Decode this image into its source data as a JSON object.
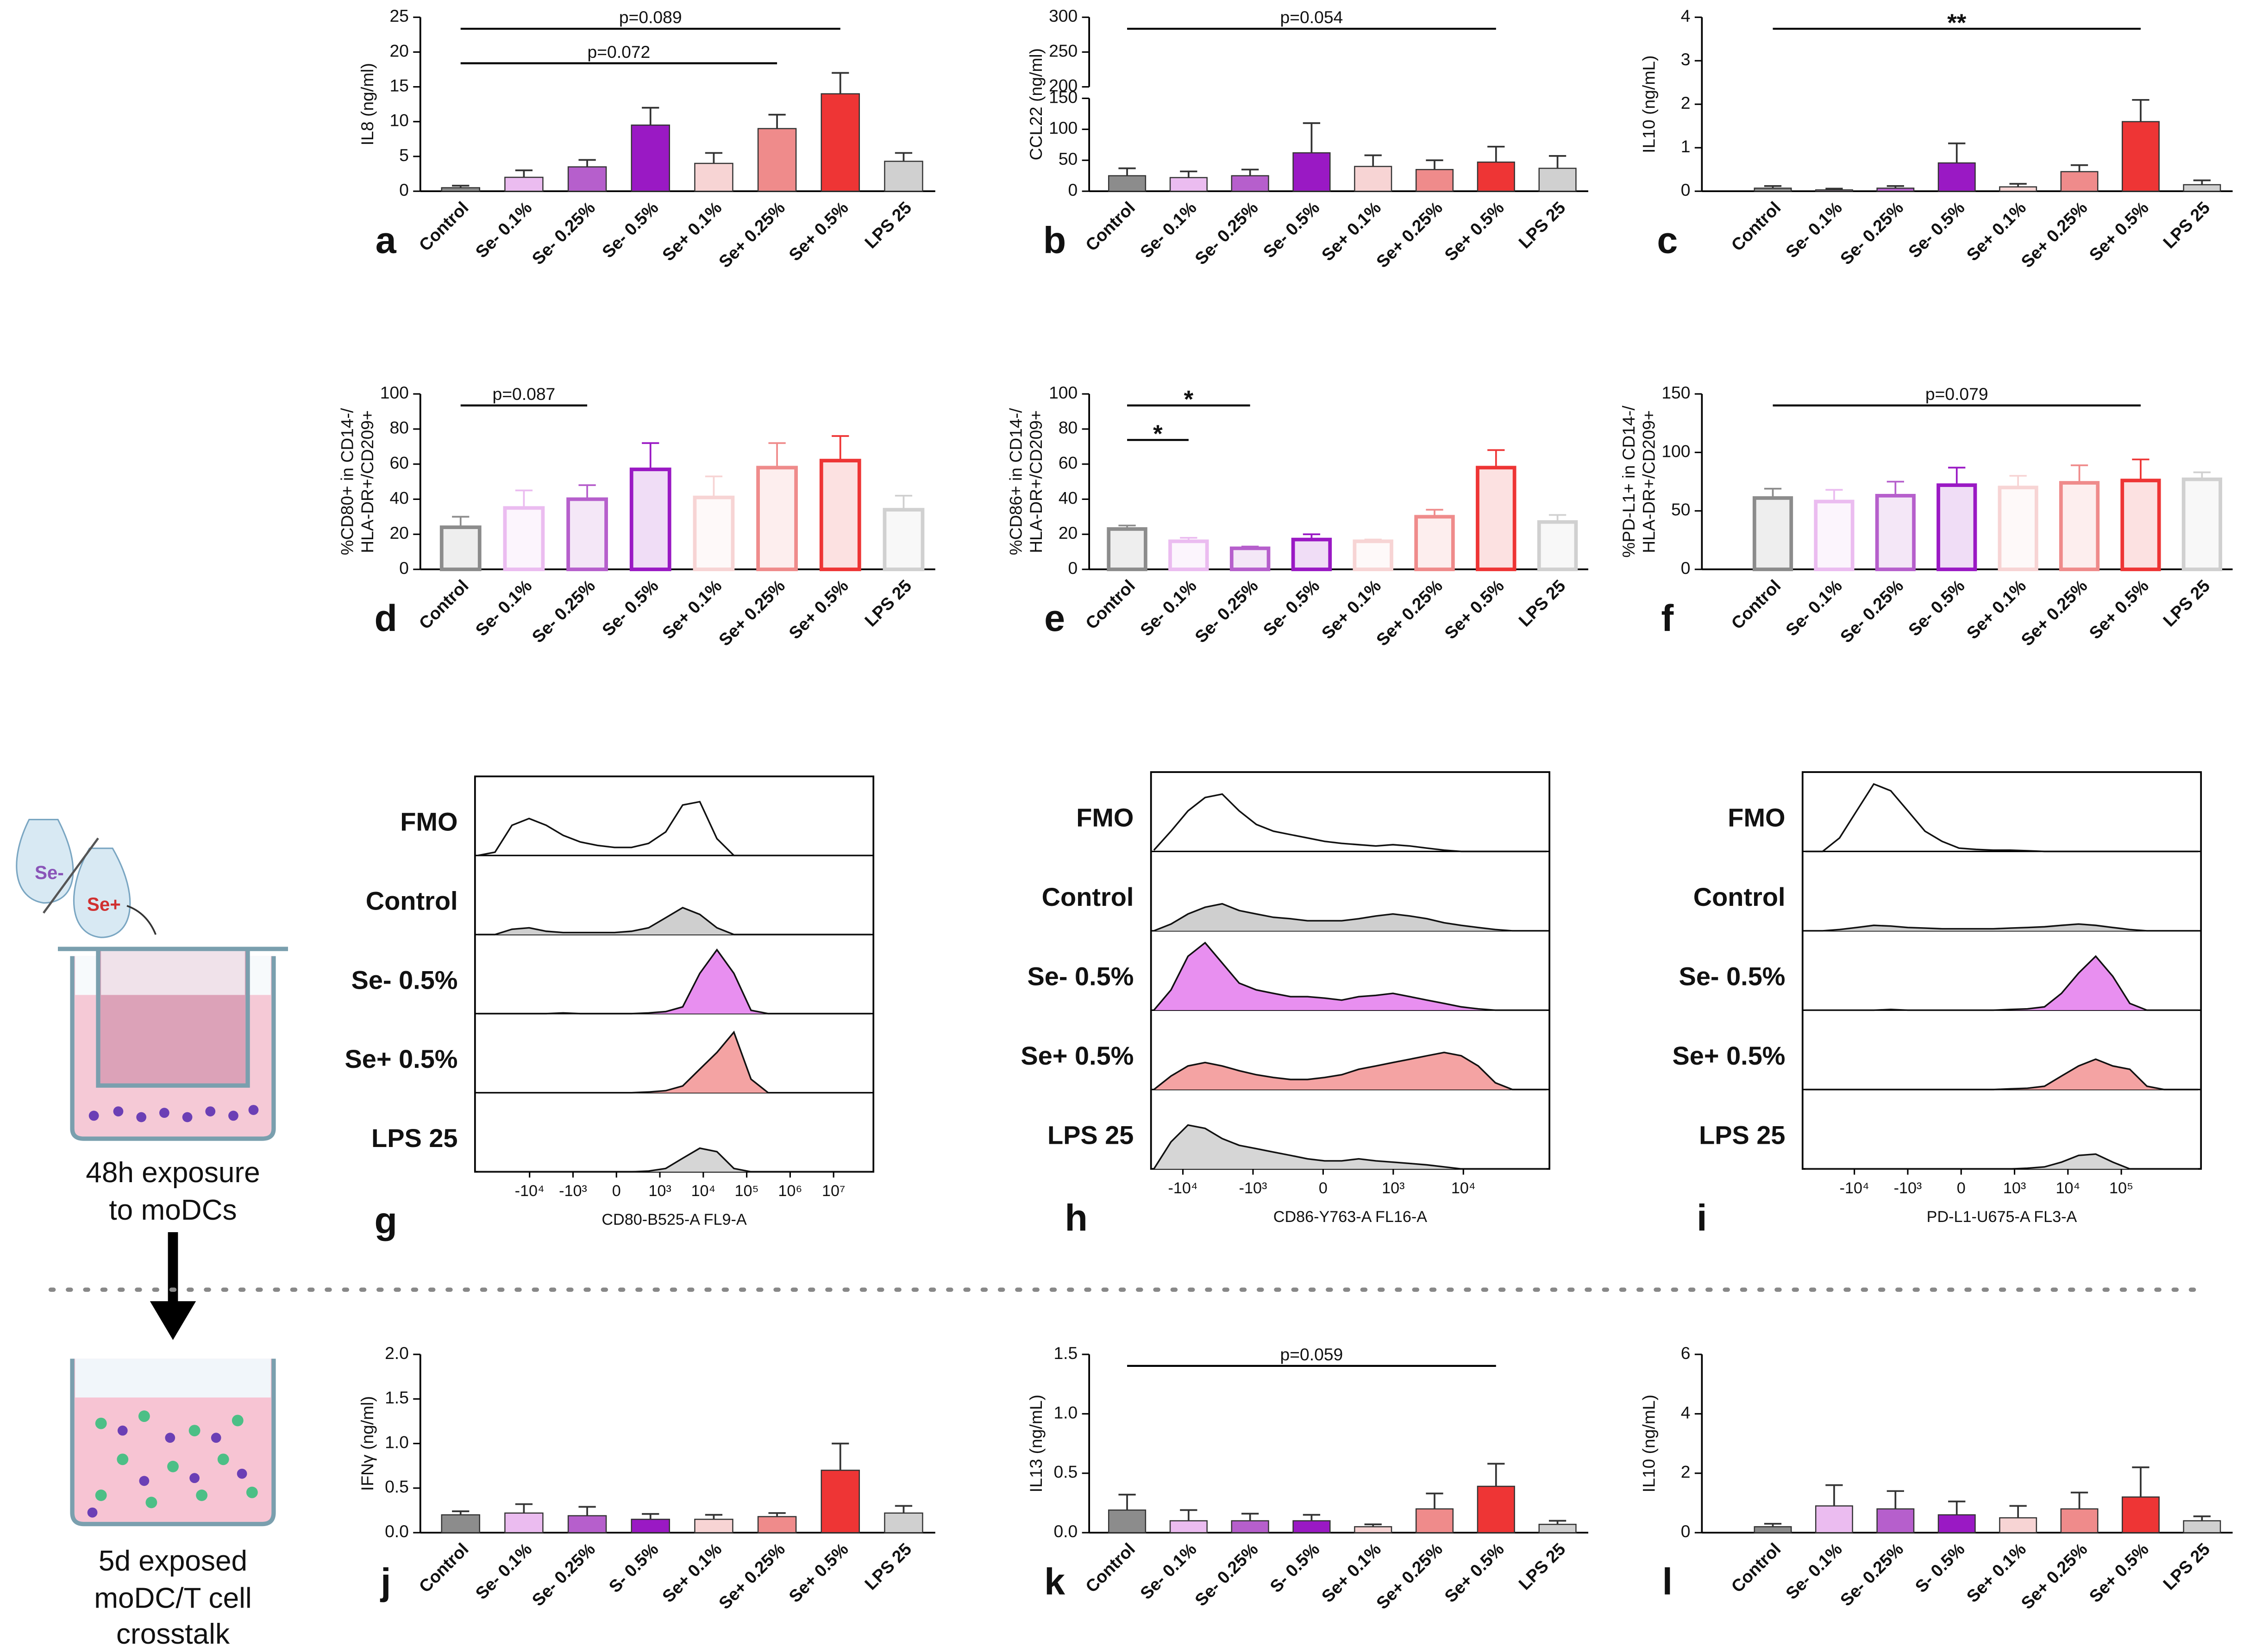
{
  "schematic": {
    "se_minus": "Se-",
    "se_plus": "Se+",
    "step1": [
      "48h exposure",
      "to moDCs"
    ],
    "step2": [
      "5d exposed",
      "moDC/T cell",
      "crosstalk"
    ]
  },
  "chart_data": [
    {
      "type": "bar",
      "panel": "a",
      "ylabel": [
        "IL8 (ng/ml)"
      ],
      "categories": [
        "Control",
        "Se- 0.1%",
        "Se- 0.25%",
        "Se- 0.5%",
        "Se+ 0.1%",
        "Se+ 0.25%",
        "Se+ 0.5%",
        "LPS 25"
      ],
      "colors": [
        "#8c8c8c",
        "#ebbcf0",
        "#b65fcc",
        "#9a19c4",
        "#f7d4d4",
        "#ef8b8b",
        "#ee3535",
        "#d0d0d0"
      ],
      "style": "filled",
      "values": [
        0.5,
        2,
        3.5,
        9.5,
        4,
        9,
        14,
        4.3
      ],
      "errors": [
        0.3,
        1,
        1,
        2.5,
        1.5,
        2,
        3,
        1.2
      ],
      "ylim": [
        0,
        25
      ],
      "yticks": [
        0,
        5,
        10,
        15,
        20,
        25
      ],
      "annotations": [
        {
          "label": "p=0.089",
          "from": 0,
          "to": 6
        },
        {
          "label": "p=0.072",
          "from": 0,
          "to": 5
        }
      ]
    },
    {
      "type": "bar",
      "panel": "b",
      "ylabel": [
        "CCL22 (ng/ml)"
      ],
      "categories": [
        "Control",
        "Se- 0.1%",
        "Se- 0.25%",
        "Se- 0.5%",
        "Se+ 0.1%",
        "Se+ 0.25%",
        "Se+ 0.5%",
        "LPS 25"
      ],
      "colors": [
        "#8c8c8c",
        "#ebbcf0",
        "#b65fcc",
        "#9a19c4",
        "#f7d4d4",
        "#ef8b8b",
        "#ee3535",
        "#d0d0d0"
      ],
      "style": "filled",
      "values": [
        25,
        22,
        25,
        62,
        40,
        35,
        47,
        37
      ],
      "errors": [
        12,
        10,
        10,
        48,
        18,
        15,
        25,
        20
      ],
      "ylim": [
        0,
        150
      ],
      "yticks": [
        0,
        50,
        100,
        150
      ],
      "upper_ylim": [
        200,
        300
      ],
      "upper_yticks": [
        200,
        250,
        300
      ],
      "annotations": [
        {
          "label": "p=0.054",
          "from": 0,
          "to": 6
        }
      ]
    },
    {
      "type": "bar",
      "panel": "c",
      "ylabel": [
        "IL10 (ng/mL)"
      ],
      "categories": [
        "Control",
        "Se- 0.1%",
        "Se- 0.25%",
        "Se- 0.5%",
        "Se+ 0.1%",
        "Se+ 0.25%",
        "Se+ 0.5%",
        "LPS 25"
      ],
      "colors": [
        "#8c8c8c",
        "#ebbcf0",
        "#b65fcc",
        "#9a19c4",
        "#f7d4d4",
        "#ef8b8b",
        "#ee3535",
        "#d0d0d0"
      ],
      "style": "filled",
      "values": [
        0.07,
        0.03,
        0.07,
        0.65,
        0.1,
        0.45,
        1.6,
        0.15
      ],
      "errors": [
        0.05,
        0.03,
        0.05,
        0.45,
        0.07,
        0.15,
        0.5,
        0.1
      ],
      "ylim": [
        0,
        4
      ],
      "yticks": [
        0,
        1,
        2,
        3,
        4
      ],
      "annotations": [
        {
          "label": "**",
          "from": 0,
          "to": 6
        }
      ]
    },
    {
      "type": "bar",
      "panel": "d",
      "ylabel": [
        "%CD80+ in CD14-/",
        "HLA-DR+/CD209+"
      ],
      "categories": [
        "Control",
        "Se- 0.1%",
        "Se- 0.25%",
        "Se- 0.5%",
        "Se+ 0.1%",
        "Se+ 0.25%",
        "Se+ 0.5%",
        "LPS 25"
      ],
      "colors": [
        "#8c8c8c",
        "#ebbcf0",
        "#b65fcc",
        "#9a19c4",
        "#f7d4d4",
        "#ef8b8b",
        "#ee3535",
        "#d0d0d0"
      ],
      "style": "outline",
      "values": [
        24,
        35,
        40,
        57,
        41,
        58,
        62,
        34
      ],
      "errors": [
        6,
        10,
        8,
        15,
        12,
        14,
        14,
        8
      ],
      "ylim": [
        0,
        100
      ],
      "yticks": [
        0,
        20,
        40,
        60,
        80,
        100
      ],
      "annotations": [
        {
          "label": "p=0.087",
          "from": 0,
          "to": 2
        }
      ]
    },
    {
      "type": "bar",
      "panel": "e",
      "ylabel": [
        "%CD86+ in CD14-/",
        "HLA-DR+/CD209+"
      ],
      "categories": [
        "Control",
        "Se- 0.1%",
        "Se- 0.25%",
        "Se- 0.5%",
        "Se+ 0.1%",
        "Se+ 0.25%",
        "Se+ 0.5%",
        "LPS 25"
      ],
      "colors": [
        "#8c8c8c",
        "#ebbcf0",
        "#b65fcc",
        "#9a19c4",
        "#f7d4d4",
        "#ef8b8b",
        "#ee3535",
        "#d0d0d0"
      ],
      "style": "outline",
      "values": [
        23,
        16,
        12,
        17,
        16,
        30,
        58,
        27
      ],
      "errors": [
        2,
        2,
        1,
        3,
        1,
        4,
        10,
        4
      ],
      "ylim": [
        0,
        100
      ],
      "yticks": [
        0,
        20,
        40,
        60,
        80,
        100
      ],
      "annotations": [
        {
          "label": "*",
          "from": 0,
          "to": 2
        },
        {
          "label": "*",
          "from": 0,
          "to": 1
        }
      ]
    },
    {
      "type": "bar",
      "panel": "f",
      "ylabel": [
        "%PD-L1+ in CD14-/",
        "HLA-DR+/CD209+"
      ],
      "categories": [
        "Control",
        "Se- 0.1%",
        "Se- 0.25%",
        "Se- 0.5%",
        "Se+ 0.1%",
        "Se+ 0.25%",
        "Se+ 0.5%",
        "LPS 25"
      ],
      "colors": [
        "#8c8c8c",
        "#ebbcf0",
        "#b65fcc",
        "#9a19c4",
        "#f7d4d4",
        "#ef8b8b",
        "#ee3535",
        "#d0d0d0"
      ],
      "style": "outline",
      "values": [
        61,
        58,
        63,
        72,
        70,
        74,
        76,
        77
      ],
      "errors": [
        8,
        10,
        12,
        15,
        10,
        15,
        18,
        6
      ],
      "ylim": [
        0,
        150
      ],
      "yticks": [
        0,
        50,
        100,
        150
      ],
      "annotations": [
        {
          "label": "p=0.079",
          "from": 0,
          "to": 6
        }
      ]
    },
    {
      "type": "histogram_stack",
      "panel": "g",
      "xlabel": "CD80-B525-A FL9-A",
      "tick_labels": [
        "-10⁴",
        "-10³",
        "0",
        "10³",
        "10⁴",
        "10⁵",
        "10⁶",
        "10⁷"
      ],
      "series": [
        {
          "name": "FMO",
          "color": "none",
          "values": [
            0,
            0.05,
            0.45,
            0.55,
            0.45,
            0.3,
            0.2,
            0.15,
            0.12,
            0.12,
            0.18,
            0.35,
            0.75,
            0.8,
            0.25,
            0,
            0,
            0,
            0,
            0,
            0,
            0,
            0,
            0
          ]
        },
        {
          "name": "Control",
          "color": "#cfcfcf",
          "values": [
            0,
            0,
            0.08,
            0.1,
            0.05,
            0.03,
            0.03,
            0.03,
            0.03,
            0.05,
            0.1,
            0.25,
            0.4,
            0.3,
            0.1,
            0,
            0,
            0,
            0,
            0,
            0,
            0,
            0,
            0
          ]
        },
        {
          "name": "Se- 0.5%",
          "color": "#e88ff0",
          "values": [
            0,
            0,
            0,
            0,
            0,
            0.01,
            0,
            0,
            0,
            0,
            0.01,
            0.03,
            0.1,
            0.6,
            0.95,
            0.6,
            0.05,
            0,
            0,
            0,
            0,
            0,
            0,
            0
          ]
        },
        {
          "name": "Se+ 0.5%",
          "color": "#f4a3a3",
          "values": [
            0,
            0,
            0,
            0,
            0,
            0,
            0,
            0,
            0,
            0,
            0.01,
            0.03,
            0.1,
            0.35,
            0.6,
            0.9,
            0.2,
            0,
            0,
            0,
            0,
            0,
            0,
            0
          ]
        },
        {
          "name": "LPS 25",
          "color": "#d6d6d6",
          "values": [
            0,
            0,
            0,
            0,
            0,
            0,
            0,
            0,
            0,
            0,
            0.01,
            0.05,
            0.2,
            0.35,
            0.3,
            0.05,
            0,
            0,
            0,
            0,
            0,
            0,
            0,
            0
          ]
        }
      ]
    },
    {
      "type": "histogram_stack",
      "panel": "h",
      "xlabel": "CD86-Y763-A FL16-A",
      "tick_labels": [
        "-10⁴",
        "-10³",
        "0",
        "10³",
        "10⁴"
      ],
      "series": [
        {
          "name": "FMO",
          "color": "none",
          "values": [
            0.02,
            0.3,
            0.6,
            0.8,
            0.85,
            0.6,
            0.4,
            0.3,
            0.25,
            0.2,
            0.15,
            0.12,
            0.1,
            0.08,
            0.1,
            0.08,
            0.05,
            0.02,
            0,
            0,
            0,
            0,
            0,
            0
          ]
        },
        {
          "name": "Control",
          "color": "#cfcfcf",
          "values": [
            0,
            0.1,
            0.25,
            0.35,
            0.4,
            0.3,
            0.25,
            0.2,
            0.18,
            0.15,
            0.15,
            0.15,
            0.18,
            0.22,
            0.25,
            0.22,
            0.18,
            0.12,
            0.08,
            0.05,
            0.02,
            0,
            0,
            0
          ]
        },
        {
          "name": "Se- 0.5%",
          "color": "#e88ff0",
          "values": [
            0,
            0.3,
            0.8,
            1.0,
            0.7,
            0.4,
            0.3,
            0.25,
            0.2,
            0.2,
            0.18,
            0.15,
            0.2,
            0.22,
            0.25,
            0.2,
            0.15,
            0.1,
            0.05,
            0.02,
            0,
            0,
            0,
            0
          ]
        },
        {
          "name": "Se+ 0.5%",
          "color": "#f4a3a3",
          "values": [
            0,
            0.2,
            0.35,
            0.4,
            0.35,
            0.28,
            0.22,
            0.18,
            0.15,
            0.15,
            0.18,
            0.22,
            0.3,
            0.35,
            0.4,
            0.45,
            0.5,
            0.55,
            0.5,
            0.35,
            0.1,
            0,
            0,
            0
          ]
        },
        {
          "name": "LPS 25",
          "color": "#d6d6d6",
          "values": [
            0,
            0.4,
            0.65,
            0.6,
            0.45,
            0.35,
            0.3,
            0.25,
            0.2,
            0.15,
            0.12,
            0.12,
            0.15,
            0.12,
            0.1,
            0.08,
            0.06,
            0.03,
            0,
            0,
            0,
            0,
            0,
            0
          ]
        }
      ]
    },
    {
      "type": "histogram_stack",
      "panel": "i",
      "xlabel": "PD-L1-U675-A FL3-A",
      "tick_labels": [
        "-10⁴",
        "-10³",
        "0",
        "10³",
        "10⁴",
        "10⁵"
      ],
      "series": [
        {
          "name": "FMO",
          "color": "none",
          "values": [
            0,
            0,
            0.2,
            0.6,
            1.0,
            0.9,
            0.6,
            0.3,
            0.15,
            0.05,
            0.03,
            0.02,
            0.02,
            0.01,
            0,
            0,
            0,
            0,
            0,
            0,
            0,
            0,
            0,
            0
          ]
        },
        {
          "name": "Control",
          "color": "#cfcfcf",
          "values": [
            0,
            0,
            0.02,
            0.05,
            0.08,
            0.07,
            0.05,
            0.04,
            0.03,
            0.03,
            0.03,
            0.03,
            0.04,
            0.05,
            0.06,
            0.08,
            0.1,
            0.08,
            0.05,
            0.02,
            0,
            0,
            0,
            0
          ]
        },
        {
          "name": "Se- 0.5%",
          "color": "#e88ff0",
          "values": [
            0,
            0,
            0,
            0,
            0,
            0.01,
            0,
            0,
            0,
            0,
            0,
            0,
            0.01,
            0.02,
            0.05,
            0.25,
            0.55,
            0.8,
            0.5,
            0.1,
            0,
            0,
            0,
            0
          ]
        },
        {
          "name": "Se+ 0.5%",
          "color": "#f4a3a3",
          "values": [
            0,
            0,
            0,
            0,
            0,
            0,
            0,
            0,
            0,
            0,
            0,
            0,
            0.01,
            0.02,
            0.05,
            0.2,
            0.35,
            0.45,
            0.35,
            0.3,
            0.05,
            0,
            0,
            0
          ]
        },
        {
          "name": "LPS 25",
          "color": "#d6d6d6",
          "values": [
            0,
            0,
            0,
            0,
            0,
            0,
            0,
            0,
            0,
            0,
            0,
            0,
            0,
            0.01,
            0.03,
            0.1,
            0.2,
            0.22,
            0.1,
            0,
            0,
            0,
            0,
            0
          ]
        }
      ]
    },
    {
      "type": "bar",
      "panel": "j",
      "ylabel": [
        "IFNγ (ng/ml)"
      ],
      "categories": [
        "Control",
        "Se- 0.1%",
        "Se- 0.25%",
        "S- 0.5%",
        "Se+ 0.1%",
        "Se+ 0.25%",
        "Se+ 0.5%",
        "LPS 25"
      ],
      "colors": [
        "#8c8c8c",
        "#ebbcf0",
        "#b65fcc",
        "#9a19c4",
        "#f7d4d4",
        "#ef8b8b",
        "#ee3535",
        "#d0d0d0"
      ],
      "style": "filled",
      "values": [
        0.2,
        0.22,
        0.19,
        0.15,
        0.15,
        0.18,
        0.7,
        0.22
      ],
      "errors": [
        0.04,
        0.1,
        0.1,
        0.06,
        0.05,
        0.04,
        0.3,
        0.08
      ],
      "ylim": [
        0,
        2
      ],
      "yticks": [
        {
          "value": 0,
          "label": "0.0"
        },
        0.5,
        {
          "value": 1,
          "label": "1.0"
        },
        1.5,
        {
          "value": 2,
          "label": "2.0"
        }
      ],
      "annotations": []
    },
    {
      "type": "bar",
      "panel": "k",
      "ylabel": [
        "IL13 (ng/mL)"
      ],
      "categories": [
        "Control",
        "Se- 0.1%",
        "Se- 0.25%",
        "S- 0.5%",
        "Se+ 0.1%",
        "Se+ 0.25%",
        "Se+ 0.5%",
        "LPS 25"
      ],
      "colors": [
        "#8c8c8c",
        "#ebbcf0",
        "#b65fcc",
        "#9a19c4",
        "#f7d4d4",
        "#ef8b8b",
        "#ee3535",
        "#d0d0d0"
      ],
      "style": "filled",
      "values": [
        0.19,
        0.1,
        0.1,
        0.1,
        0.05,
        0.2,
        0.39,
        0.07
      ],
      "errors": [
        0.13,
        0.09,
        0.06,
        0.05,
        0.02,
        0.13,
        0.19,
        0.03
      ],
      "ylim": [
        0,
        1.5
      ],
      "yticks": [
        {
          "value": 0,
          "label": "0.0"
        },
        0.5,
        {
          "value": 1,
          "label": "1.0"
        },
        1.5
      ],
      "annotations": [
        {
          "label": "p=0.059",
          "from": 0,
          "to": 6
        }
      ]
    },
    {
      "type": "bar",
      "panel": "l",
      "ylabel": [
        "IL10 (ng/mL)"
      ],
      "categories": [
        "Control",
        "Se- 0.1%",
        "Se- 0.25%",
        "S- 0.5%",
        "Se+ 0.1%",
        "Se+ 0.25%",
        "Se+ 0.5%",
        "LPS 25"
      ],
      "colors": [
        "#8c8c8c",
        "#ebbcf0",
        "#b65fcc",
        "#9a19c4",
        "#f7d4d4",
        "#ef8b8b",
        "#ee3535",
        "#d0d0d0"
      ],
      "style": "filled",
      "values": [
        0.2,
        0.9,
        0.8,
        0.6,
        0.5,
        0.8,
        1.2,
        0.4
      ],
      "errors": [
        0.1,
        0.7,
        0.6,
        0.45,
        0.4,
        0.55,
        1.0,
        0.15
      ],
      "ylim": [
        0,
        6
      ],
      "yticks": [
        0,
        2,
        4,
        6
      ],
      "annotations": []
    }
  ]
}
